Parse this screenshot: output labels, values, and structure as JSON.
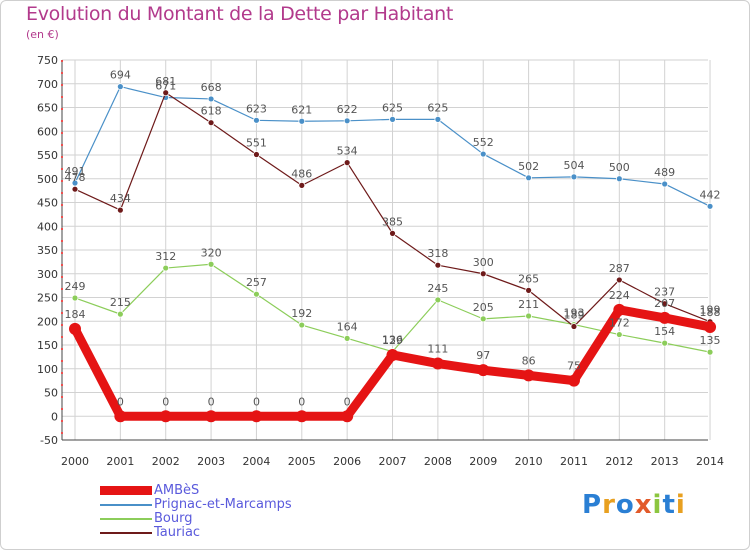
{
  "header": {
    "title": "Evolution du Montant de la Dette par Habitant",
    "unit": "(en €)"
  },
  "chart_data": {
    "type": "line",
    "title": "Evolution du Montant de la Dette par Habitant",
    "ylabel": "(en €)",
    "x": [
      "2000",
      "2001",
      "2002",
      "2003",
      "2004",
      "2005",
      "2006",
      "2007",
      "2008",
      "2009",
      "2010",
      "2011",
      "2012",
      "2013",
      "2014"
    ],
    "ylim": [
      -50,
      750
    ],
    "yticks": [
      -50,
      0,
      50,
      100,
      150,
      200,
      250,
      300,
      350,
      400,
      450,
      500,
      550,
      600,
      650,
      700,
      750
    ],
    "grid": true,
    "legend_position": "bottom-left",
    "series": [
      {
        "name": "Prignac-et-Marcamps",
        "color": "#4a90c8",
        "values": [
          491,
          694,
          671,
          668,
          623,
          621,
          622,
          625,
          625,
          552,
          502,
          504,
          500,
          489,
          442
        ]
      },
      {
        "name": "Bourg",
        "color": "#8ccd5a",
        "values": [
          249,
          215,
          312,
          320,
          257,
          192,
          164,
          136,
          245,
          205,
          211,
          193,
          172,
          154,
          135
        ]
      },
      {
        "name": "Tauriac",
        "color": "#6e1a1a",
        "values": [
          478,
          434,
          681,
          618,
          551,
          486,
          534,
          385,
          318,
          300,
          265,
          189,
          287,
          237,
          199
        ]
      },
      {
        "name": "AMBèS",
        "color": "#e51414",
        "values": [
          184,
          0,
          0,
          0,
          0,
          0,
          0,
          129,
          111,
          97,
          86,
          75,
          224,
          207,
          188
        ]
      }
    ],
    "labels": [
      {
        "series": "Prignac-et-Marcamps",
        "text": [
          "491",
          "694",
          "671",
          "668",
          "623",
          "621",
          "622",
          "625",
          "625",
          "552",
          "502",
          "504",
          "500",
          "489",
          "442"
        ]
      },
      {
        "series": "Bourg",
        "text": [
          "249",
          "215",
          "312",
          "320",
          "257",
          "192",
          "164",
          "136",
          "245",
          "205",
          "211",
          "193",
          "172",
          "154",
          "135"
        ]
      },
      {
        "series": "Tauriac",
        "text": [
          "478",
          "434",
          "681",
          "618",
          "551",
          "486",
          "534",
          "385",
          "318",
          "300",
          "265",
          "189",
          "287",
          "237",
          "199"
        ]
      },
      {
        "series": "AMBèS",
        "text": [
          "184",
          "0",
          "0",
          "0",
          "0",
          "0",
          "0",
          "129",
          "111",
          "97",
          "86",
          "75",
          "224",
          "207",
          "188"
        ]
      }
    ]
  },
  "legend": {
    "items": [
      {
        "label": "AMBèS",
        "color": "#e51414"
      },
      {
        "label": "Prignac-et-Marcamps",
        "color": "#4a90c8"
      },
      {
        "label": "Bourg",
        "color": "#8ccd5a"
      },
      {
        "label": "Tauriac",
        "color": "#6e1a1a"
      }
    ]
  },
  "logo": {
    "text": "Proxiti"
  }
}
